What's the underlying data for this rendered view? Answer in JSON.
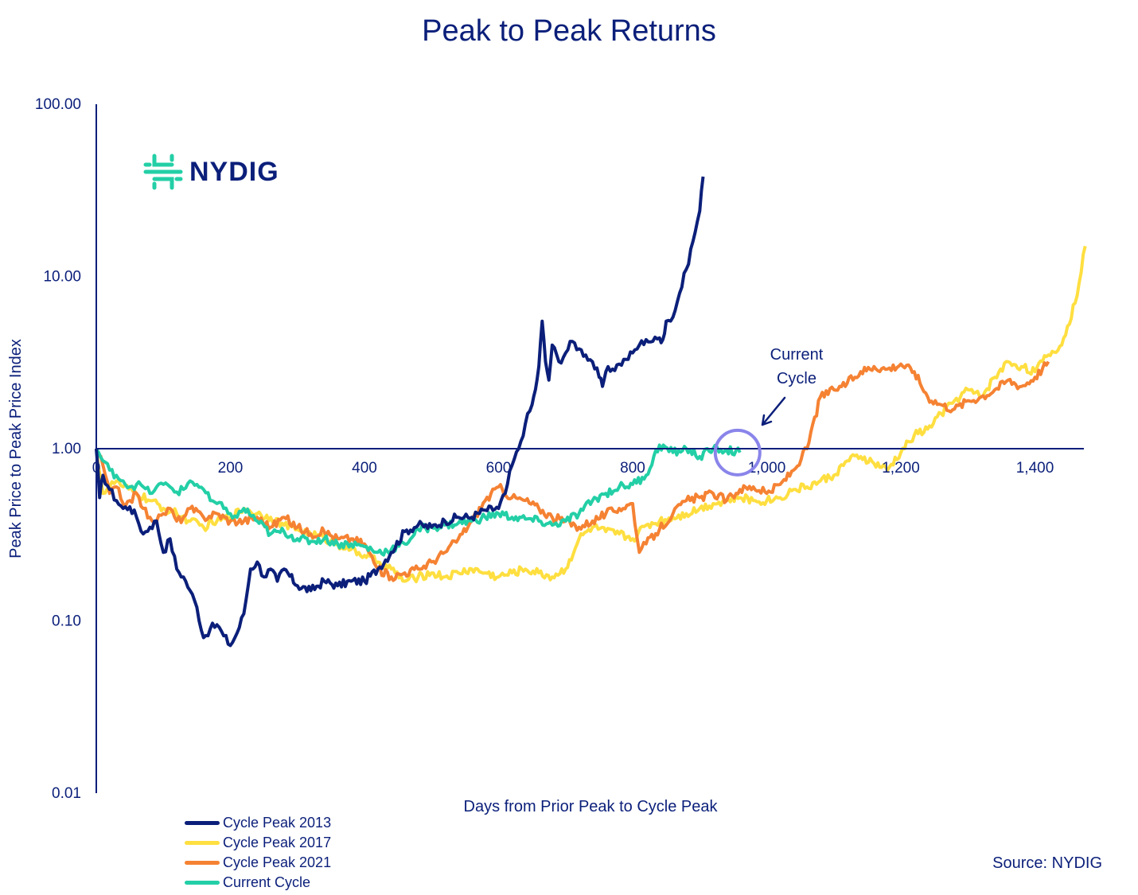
{
  "chart_data": {
    "type": "line",
    "title": "Peak to Peak Returns",
    "xlabel": "Days from Prior Peak to Cycle Peak",
    "ylabel": "Peak Price to Peak Price Index",
    "y_scale": "log",
    "xlim": [
      0,
      1480
    ],
    "ylim": [
      0.01,
      100
    ],
    "x_ticks": [
      {
        "value": 0,
        "label": "0"
      },
      {
        "value": 200,
        "label": "200"
      },
      {
        "value": 400,
        "label": "400"
      },
      {
        "value": 600,
        "label": "600"
      },
      {
        "value": 800,
        "label": "800"
      },
      {
        "value": 1000,
        "label": "1,000"
      },
      {
        "value": 1200,
        "label": "1,200"
      },
      {
        "value": 1400,
        "label": "1,400"
      }
    ],
    "y_ticks": [
      {
        "value": 100,
        "label": "100.00"
      },
      {
        "value": 10,
        "label": "10.00"
      },
      {
        "value": 1,
        "label": "1.00"
      },
      {
        "value": 0.1,
        "label": "0.10"
      },
      {
        "value": 0.01,
        "label": "0.01"
      }
    ],
    "grid": false,
    "legend_position": "bottom-left",
    "series": [
      {
        "name": "Cycle Peak 2013",
        "color": "#0b1f7a",
        "x": [
          0,
          5,
          10,
          20,
          30,
          40,
          50,
          60,
          70,
          80,
          90,
          100,
          110,
          120,
          130,
          140,
          150,
          160,
          170,
          180,
          190,
          200,
          210,
          220,
          230,
          240,
          250,
          260,
          270,
          280,
          300,
          320,
          340,
          360,
          380,
          400,
          420,
          440,
          460,
          480,
          500,
          520,
          540,
          560,
          580,
          600,
          610,
          620,
          630,
          640,
          650,
          655,
          660,
          665,
          670,
          675,
          680,
          690,
          700,
          710,
          720,
          730,
          740,
          750,
          755,
          760,
          770,
          780,
          790,
          800,
          810,
          820,
          830,
          840,
          845,
          850,
          860,
          870,
          880,
          890,
          900,
          905
        ],
        "values": [
          1.0,
          0.52,
          0.7,
          0.58,
          0.5,
          0.45,
          0.46,
          0.4,
          0.32,
          0.35,
          0.38,
          0.25,
          0.3,
          0.2,
          0.18,
          0.15,
          0.12,
          0.08,
          0.09,
          0.095,
          0.082,
          0.072,
          0.085,
          0.11,
          0.2,
          0.22,
          0.18,
          0.2,
          0.17,
          0.2,
          0.16,
          0.15,
          0.17,
          0.16,
          0.17,
          0.17,
          0.2,
          0.25,
          0.33,
          0.36,
          0.35,
          0.38,
          0.4,
          0.4,
          0.44,
          0.45,
          0.55,
          0.8,
          1.0,
          1.4,
          1.8,
          2.2,
          3.0,
          5.5,
          3.2,
          2.5,
          4.0,
          3.2,
          3.6,
          4.2,
          3.8,
          3.5,
          3.2,
          2.6,
          2.3,
          2.8,
          2.9,
          3.1,
          3.3,
          3.6,
          4.0,
          4.3,
          4.2,
          4.4,
          4.3,
          5.5,
          5.8,
          8.0,
          11.0,
          16.0,
          24.0,
          38.0
        ]
      },
      {
        "name": "Cycle Peak 2017",
        "color": "#ffdf40",
        "x": [
          0,
          10,
          20,
          30,
          40,
          60,
          80,
          100,
          120,
          140,
          160,
          180,
          200,
          220,
          240,
          260,
          280,
          300,
          320,
          340,
          360,
          380,
          400,
          420,
          440,
          460,
          480,
          500,
          520,
          540,
          560,
          580,
          600,
          620,
          640,
          660,
          680,
          700,
          720,
          740,
          760,
          780,
          800,
          820,
          840,
          860,
          880,
          900,
          920,
          940,
          960,
          980,
          1000,
          1020,
          1040,
          1060,
          1080,
          1100,
          1120,
          1140,
          1160,
          1180,
          1200,
          1220,
          1240,
          1260,
          1280,
          1300,
          1320,
          1340,
          1360,
          1380,
          1400,
          1420,
          1440,
          1460,
          1475
        ],
        "values": [
          1.0,
          0.55,
          0.6,
          0.65,
          0.6,
          0.55,
          0.5,
          0.45,
          0.42,
          0.38,
          0.35,
          0.38,
          0.4,
          0.45,
          0.42,
          0.4,
          0.36,
          0.34,
          0.32,
          0.3,
          0.28,
          0.26,
          0.24,
          0.22,
          0.2,
          0.17,
          0.18,
          0.19,
          0.18,
          0.19,
          0.2,
          0.19,
          0.18,
          0.19,
          0.2,
          0.19,
          0.18,
          0.2,
          0.3,
          0.35,
          0.33,
          0.32,
          0.3,
          0.36,
          0.38,
          0.4,
          0.42,
          0.45,
          0.48,
          0.5,
          0.52,
          0.5,
          0.5,
          0.52,
          0.58,
          0.6,
          0.65,
          0.7,
          0.85,
          0.9,
          0.82,
          0.75,
          0.95,
          1.2,
          1.3,
          1.6,
          1.9,
          2.2,
          2.0,
          2.6,
          3.2,
          3.0,
          2.8,
          3.5,
          4.0,
          7.0,
          15.0
        ]
      },
      {
        "name": "Cycle Peak 2021",
        "color": "#f58233",
        "x": [
          0,
          10,
          20,
          30,
          40,
          50,
          60,
          70,
          80,
          90,
          100,
          110,
          120,
          130,
          140,
          160,
          180,
          200,
          220,
          240,
          260,
          280,
          300,
          320,
          340,
          360,
          380,
          400,
          420,
          440,
          460,
          480,
          500,
          520,
          540,
          560,
          580,
          600,
          620,
          640,
          660,
          680,
          700,
          720,
          740,
          760,
          780,
          800,
          810,
          820,
          840,
          860,
          880,
          900,
          920,
          940,
          960,
          980,
          1000,
          1020,
          1040,
          1060,
          1080,
          1100,
          1120,
          1140,
          1160,
          1180,
          1200,
          1220,
          1240,
          1260,
          1280,
          1300,
          1320,
          1340,
          1360,
          1380,
          1400,
          1420
        ],
        "values": [
          1.0,
          0.8,
          0.55,
          0.6,
          0.48,
          0.5,
          0.55,
          0.45,
          0.4,
          0.38,
          0.42,
          0.45,
          0.38,
          0.4,
          0.45,
          0.4,
          0.42,
          0.38,
          0.38,
          0.4,
          0.35,
          0.4,
          0.35,
          0.32,
          0.33,
          0.3,
          0.3,
          0.28,
          0.2,
          0.18,
          0.19,
          0.2,
          0.22,
          0.25,
          0.3,
          0.38,
          0.5,
          0.6,
          0.52,
          0.5,
          0.45,
          0.4,
          0.38,
          0.35,
          0.38,
          0.42,
          0.45,
          0.48,
          0.25,
          0.28,
          0.34,
          0.42,
          0.5,
          0.52,
          0.55,
          0.5,
          0.58,
          0.6,
          0.55,
          0.62,
          0.75,
          1.0,
          2.0,
          2.2,
          2.4,
          2.8,
          3.0,
          2.9,
          3.1,
          2.8,
          2.0,
          1.8,
          1.7,
          1.9,
          2.0,
          2.2,
          2.5,
          2.3,
          2.6,
          3.2
        ]
      },
      {
        "name": "Current Cycle",
        "color": "#23cfa6",
        "x": [
          0,
          10,
          20,
          30,
          40,
          50,
          60,
          70,
          80,
          90,
          100,
          110,
          120,
          130,
          140,
          150,
          160,
          170,
          180,
          190,
          200,
          210,
          220,
          240,
          260,
          280,
          300,
          320,
          340,
          360,
          380,
          400,
          420,
          440,
          460,
          480,
          500,
          520,
          540,
          560,
          580,
          600,
          620,
          640,
          660,
          680,
          700,
          720,
          740,
          760,
          780,
          800,
          820,
          840,
          860,
          880,
          900,
          920,
          940,
          960
        ],
        "values": [
          1.0,
          0.85,
          0.75,
          0.7,
          0.65,
          0.6,
          0.62,
          0.6,
          0.55,
          0.6,
          0.62,
          0.6,
          0.56,
          0.58,
          0.65,
          0.62,
          0.58,
          0.5,
          0.48,
          0.45,
          0.42,
          0.4,
          0.45,
          0.38,
          0.32,
          0.33,
          0.3,
          0.29,
          0.3,
          0.28,
          0.28,
          0.27,
          0.25,
          0.26,
          0.28,
          0.34,
          0.35,
          0.36,
          0.37,
          0.38,
          0.4,
          0.42,
          0.4,
          0.39,
          0.38,
          0.36,
          0.38,
          0.42,
          0.5,
          0.55,
          0.6,
          0.62,
          0.7,
          1.05,
          0.95,
          1.0,
          0.9,
          1.0,
          0.98,
          0.95
        ]
      }
    ],
    "annotations": [
      {
        "text_lines": [
          "Current",
          "Cycle"
        ],
        "x": 960,
        "y": 0.95
      }
    ]
  },
  "logo": {
    "text": "NYDIG",
    "icon": "nydig-mark-icon",
    "color": "#23cfa6"
  },
  "source": "Source: NYDIG",
  "axis_color": "#0b1f7a",
  "highlight_color": "#8a85ea"
}
